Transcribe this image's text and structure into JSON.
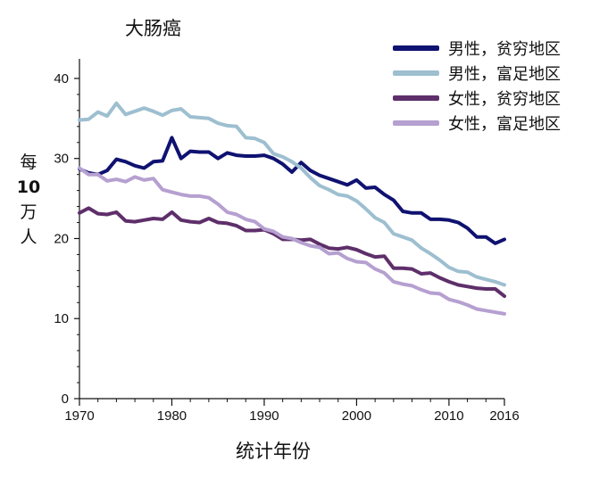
{
  "chart_data": {
    "type": "line",
    "title": "大肠癌",
    "xlabel": "统计年份",
    "ylabel": {
      "char1": "每",
      "num": "10",
      "char2": "万",
      "char3": "人"
    },
    "xlim": [
      1970,
      2016
    ],
    "ylim": [
      0,
      42
    ],
    "xticks": [
      1970,
      1980,
      1990,
      2000,
      2010,
      2016
    ],
    "xticklabels": [
      "1970",
      "1980",
      "1990",
      "2000",
      "2010",
      "2016"
    ],
    "yticks": [
      0,
      10,
      20,
      30,
      40
    ],
    "yticklabels": [
      "0",
      "10",
      "20",
      "30",
      "40"
    ],
    "legend_position": "top-right",
    "x": [
      1970,
      1971,
      1972,
      1973,
      1974,
      1975,
      1976,
      1977,
      1978,
      1979,
      1980,
      1981,
      1982,
      1983,
      1984,
      1985,
      1986,
      1987,
      1988,
      1989,
      1990,
      1991,
      1992,
      1993,
      1994,
      1995,
      1996,
      1997,
      1998,
      1999,
      2000,
      2001,
      2002,
      2003,
      2004,
      2005,
      2006,
      2007,
      2008,
      2009,
      2010,
      2011,
      2012,
      2013,
      2014,
      2015,
      2016
    ],
    "series": [
      {
        "name": "男性，贫穷地区",
        "color": "#0f1270",
        "values": [
          28.7,
          28.2,
          28.0,
          28.5,
          29.9,
          29.6,
          29.1,
          28.8,
          29.6,
          29.7,
          32.6,
          30.0,
          30.9,
          30.8,
          30.8,
          30.0,
          30.7,
          30.4,
          30.3,
          30.3,
          30.4,
          30.0,
          29.3,
          28.3,
          29.5,
          28.5,
          27.9,
          27.5,
          27.1,
          26.7,
          27.3,
          26.3,
          26.4,
          25.5,
          24.8,
          23.4,
          23.2,
          23.2,
          22.4,
          22.4,
          22.3,
          22.0,
          21.3,
          20.2,
          20.2,
          19.4,
          19.9
        ]
      },
      {
        "name": "男性，富足地区",
        "color": "#9dbfd0",
        "values": [
          34.8,
          34.9,
          35.8,
          35.3,
          36.9,
          35.5,
          35.9,
          36.3,
          35.9,
          35.4,
          36.0,
          36.2,
          35.2,
          35.1,
          35.0,
          34.4,
          34.1,
          34.0,
          32.6,
          32.5,
          32.0,
          30.6,
          30.2,
          29.6,
          28.8,
          27.6,
          26.6,
          26.1,
          25.5,
          25.3,
          24.7,
          23.7,
          22.6,
          22.0,
          20.6,
          20.2,
          19.8,
          18.8,
          18.1,
          17.3,
          16.4,
          15.9,
          15.8,
          15.2,
          14.9,
          14.6,
          14.2
        ]
      },
      {
        "name": "女性，贫穷地区",
        "color": "#5e2f6a",
        "values": [
          23.2,
          23.8,
          23.1,
          23.0,
          23.3,
          22.2,
          22.1,
          22.3,
          22.5,
          22.4,
          23.3,
          22.3,
          22.1,
          22.0,
          22.5,
          22.0,
          21.9,
          21.6,
          21.0,
          21.0,
          21.1,
          20.6,
          19.9,
          19.9,
          19.8,
          19.9,
          19.3,
          18.8,
          18.7,
          18.9,
          18.6,
          18.1,
          17.7,
          17.8,
          16.3,
          16.3,
          16.2,
          15.6,
          15.7,
          15.1,
          14.6,
          14.2,
          14.0,
          13.8,
          13.7,
          13.7,
          12.8
        ]
      },
      {
        "name": "女性，富足地区",
        "color": "#b5a0d0",
        "values": [
          28.8,
          28.0,
          28.0,
          27.2,
          27.4,
          27.1,
          27.7,
          27.3,
          27.5,
          26.1,
          25.8,
          25.5,
          25.3,
          25.3,
          25.1,
          24.3,
          23.3,
          23.0,
          22.4,
          22.1,
          21.2,
          20.9,
          20.2,
          20.0,
          19.5,
          19.1,
          18.9,
          18.1,
          18.2,
          17.5,
          17.1,
          17.0,
          16.2,
          15.7,
          14.6,
          14.3,
          14.1,
          13.6,
          13.2,
          13.1,
          12.4,
          12.1,
          11.7,
          11.2,
          11.0,
          10.8,
          10.6
        ]
      }
    ]
  }
}
